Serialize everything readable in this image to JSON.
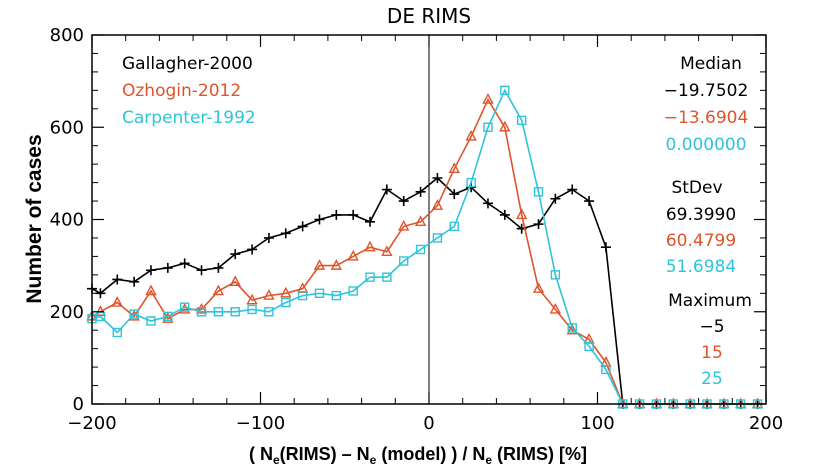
{
  "chart_data": {
    "type": "line",
    "title": "DE RIMS",
    "ylabel": "Number of cases",
    "xlabel": {
      "open": "( N",
      "sub1": "e",
      "mid1": "(RIMS) – N",
      "sub2": "e",
      "mid2": " (model) ) / N",
      "sub3": "e",
      "end": " (RIMS)   [%]"
    },
    "xlim": [
      -200,
      200
    ],
    "ylim": [
      0,
      800
    ],
    "xticks": [
      -200,
      -100,
      0,
      100,
      200
    ],
    "yticks": [
      0,
      200,
      400,
      600,
      800
    ],
    "vline_x": 0,
    "series": [
      {
        "name": "Gallagher-2000",
        "color": "#000000",
        "marker": "plus",
        "points": [
          [
            -200,
            250
          ],
          [
            -195,
            240
          ],
          [
            -185,
            270
          ],
          [
            -175,
            265
          ],
          [
            -165,
            290
          ],
          [
            -155,
            295
          ],
          [
            -145,
            305
          ],
          [
            -135,
            290
          ],
          [
            -125,
            295
          ],
          [
            -115,
            325
          ],
          [
            -105,
            335
          ],
          [
            -95,
            360
          ],
          [
            -85,
            370
          ],
          [
            -75,
            385
          ],
          [
            -65,
            400
          ],
          [
            -55,
            410
          ],
          [
            -45,
            410
          ],
          [
            -35,
            395
          ],
          [
            -25,
            465
          ],
          [
            -15,
            440
          ],
          [
            -5,
            460
          ],
          [
            5,
            490
          ],
          [
            15,
            455
          ],
          [
            25,
            470
          ],
          [
            35,
            435
          ],
          [
            45,
            410
          ],
          [
            55,
            380
          ],
          [
            65,
            390
          ],
          [
            75,
            445
          ],
          [
            85,
            465
          ],
          [
            95,
            440
          ],
          [
            105,
            340
          ],
          [
            115,
            0
          ],
          [
            125,
            0
          ],
          [
            135,
            0
          ],
          [
            145,
            0
          ],
          [
            155,
            0
          ],
          [
            165,
            0
          ],
          [
            175,
            0
          ],
          [
            185,
            0
          ],
          [
            195,
            0
          ]
        ]
      },
      {
        "name": "Ozhogin-2012",
        "color": "#e0542a",
        "marker": "triangle",
        "points": [
          [
            -200,
            190
          ],
          [
            -195,
            200
          ],
          [
            -185,
            220
          ],
          [
            -175,
            190
          ],
          [
            -165,
            245
          ],
          [
            -155,
            185
          ],
          [
            -145,
            205
          ],
          [
            -135,
            205
          ],
          [
            -125,
            245
          ],
          [
            -115,
            265
          ],
          [
            -105,
            225
          ],
          [
            -95,
            235
          ],
          [
            -85,
            240
          ],
          [
            -75,
            250
          ],
          [
            -65,
            300
          ],
          [
            -55,
            300
          ],
          [
            -45,
            320
          ],
          [
            -35,
            340
          ],
          [
            -25,
            330
          ],
          [
            -15,
            385
          ],
          [
            -5,
            395
          ],
          [
            5,
            430
          ],
          [
            15,
            510
          ],
          [
            25,
            580
          ],
          [
            35,
            660
          ],
          [
            45,
            600
          ],
          [
            55,
            410
          ],
          [
            65,
            250
          ],
          [
            75,
            205
          ],
          [
            85,
            160
          ],
          [
            95,
            140
          ],
          [
            105,
            90
          ],
          [
            115,
            0
          ],
          [
            125,
            0
          ],
          [
            135,
            0
          ],
          [
            145,
            0
          ],
          [
            155,
            0
          ],
          [
            165,
            0
          ],
          [
            175,
            0
          ],
          [
            185,
            0
          ],
          [
            195,
            0
          ]
        ]
      },
      {
        "name": "Carpenter-1992",
        "color": "#2ec4d9",
        "marker": "square",
        "points": [
          [
            -200,
            185
          ],
          [
            -195,
            190
          ],
          [
            -185,
            155
          ],
          [
            -175,
            195
          ],
          [
            -165,
            180
          ],
          [
            -155,
            190
          ],
          [
            -145,
            210
          ],
          [
            -135,
            200
          ],
          [
            -125,
            200
          ],
          [
            -115,
            200
          ],
          [
            -105,
            205
          ],
          [
            -95,
            200
          ],
          [
            -85,
            220
          ],
          [
            -75,
            235
          ],
          [
            -65,
            240
          ],
          [
            -55,
            235
          ],
          [
            -45,
            245
          ],
          [
            -35,
            275
          ],
          [
            -25,
            275
          ],
          [
            -15,
            310
          ],
          [
            -5,
            335
          ],
          [
            5,
            360
          ],
          [
            15,
            385
          ],
          [
            25,
            480
          ],
          [
            35,
            600
          ],
          [
            45,
            680
          ],
          [
            55,
            615
          ],
          [
            65,
            460
          ],
          [
            75,
            280
          ],
          [
            85,
            165
          ],
          [
            95,
            125
          ],
          [
            105,
            75
          ],
          [
            115,
            0
          ],
          [
            125,
            0
          ],
          [
            135,
            0
          ],
          [
            145,
            0
          ],
          [
            155,
            0
          ],
          [
            165,
            0
          ],
          [
            175,
            0
          ],
          [
            185,
            0
          ],
          [
            195,
            0
          ]
        ]
      }
    ],
    "stats": {
      "median_label": "Median",
      "median": [
        "−19.7502",
        "−13.6904",
        "0.000000"
      ],
      "stdev_label": "StDev",
      "stdev": [
        "69.3990",
        "60.4799",
        "51.6984"
      ],
      "maximum_label": "Maximum",
      "maximum": [
        "−5",
        "15",
        "25"
      ]
    }
  }
}
